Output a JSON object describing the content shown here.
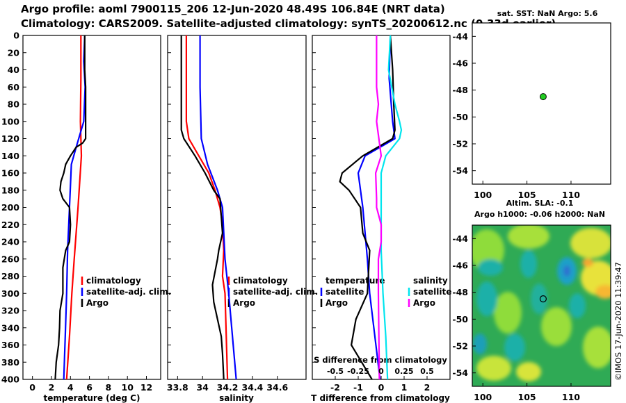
{
  "titles": {
    "line1": "Argo profile: aoml 7900115_206 12-Jun-2020 48.49S 106.84E (NRT data)",
    "line2": "Climatology: CARS2009. Satellite-adjusted climatology: synTS_20200612.nc (0.33d earlier)"
  },
  "depth_ticks": [
    0,
    20,
    40,
    60,
    80,
    100,
    120,
    140,
    160,
    180,
    200,
    220,
    240,
    260,
    280,
    300,
    320,
    340,
    360,
    380,
    400
  ],
  "colors": {
    "argo": "#000000",
    "clim": "#ff0000",
    "sat_adj": "#0000ff",
    "t_sat": "#0000ff",
    "t_argo": "#000000",
    "s_sat": "#00e5ee",
    "s_argo": "#ff00ff",
    "marker": "#22cc22"
  },
  "chart_data": [
    {
      "type": "line",
      "title": "",
      "xlabel": "temperature (deg C)",
      "ylabel": "",
      "xlim": [
        -1,
        13.5
      ],
      "ylim": [
        400,
        0
      ],
      "xticks": [
        0,
        2,
        4,
        6,
        8,
        10,
        12
      ],
      "legend": [
        "climatology",
        "satellite-adj. clim.",
        "Argo"
      ],
      "series": [
        {
          "name": "climatology",
          "y": [
            0,
            50,
            100,
            140,
            200,
            260,
            300,
            350,
            400
          ],
          "x": [
            5.1,
            5.1,
            5.05,
            5.15,
            4.8,
            4.4,
            4.15,
            3.9,
            3.6
          ]
        },
        {
          "name": "satellite-adj. clim.",
          "y": [
            0,
            30,
            60,
            100,
            130,
            150,
            200,
            250,
            300,
            350,
            400
          ],
          "x": [
            5.5,
            5.4,
            5.55,
            5.4,
            4.6,
            4.1,
            3.9,
            3.7,
            3.6,
            3.45,
            3.3
          ]
        },
        {
          "name": "Argo",
          "y": [
            0,
            40,
            60,
            90,
            120,
            125,
            130,
            140,
            150,
            160,
            170,
            180,
            190,
            200,
            220,
            240,
            250,
            270,
            300,
            320,
            340,
            360,
            380,
            400
          ],
          "x": [
            5.5,
            5.5,
            5.6,
            5.6,
            5.6,
            5.3,
            4.6,
            4.0,
            3.5,
            3.3,
            3.0,
            2.9,
            3.2,
            3.9,
            4.0,
            3.9,
            3.5,
            3.2,
            3.2,
            2.9,
            2.85,
            2.75,
            2.5,
            2.4
          ]
        }
      ]
    },
    {
      "type": "line",
      "title": "",
      "xlabel": "salinity",
      "ylabel": "",
      "xlim": [
        33.72,
        34.83
      ],
      "ylim": [
        400,
        0
      ],
      "xticks": [
        33.8,
        34,
        34.2,
        34.4,
        34.6
      ],
      "legend": [
        "climatology",
        "satellite-adj. clim.",
        "Argo"
      ],
      "series": [
        {
          "name": "climatology",
          "y": [
            0,
            100,
            120,
            140,
            160,
            180,
            200,
            220,
            250,
            280,
            300,
            350,
            400
          ],
          "x": [
            33.87,
            33.87,
            33.89,
            33.97,
            34.05,
            34.1,
            34.14,
            34.16,
            34.17,
            34.16,
            34.18,
            34.19,
            34.2
          ],
          "style": "lower-part"
        },
        {
          "name": "satellite-adj. clim.",
          "y": [
            0,
            60,
            120,
            150,
            180,
            200,
            230,
            260,
            300,
            350,
            400
          ],
          "x": [
            33.98,
            33.98,
            33.99,
            34.04,
            34.12,
            34.16,
            34.17,
            34.18,
            34.21,
            34.24,
            34.27
          ]
        },
        {
          "name": "Argo",
          "y": [
            0,
            110,
            120,
            140,
            160,
            180,
            190,
            210,
            230,
            250,
            260,
            290,
            310,
            330,
            350,
            370,
            400
          ],
          "x": [
            33.83,
            33.83,
            33.85,
            33.94,
            34.02,
            34.09,
            34.14,
            34.15,
            34.16,
            34.13,
            34.12,
            34.08,
            34.09,
            34.12,
            34.15,
            34.16,
            34.17
          ]
        }
      ]
    },
    {
      "type": "line",
      "title": "",
      "xlabel": "T difference from climatology",
      "ylabel": "",
      "xlim": [
        -3,
        3
      ],
      "ylim": [
        400,
        0
      ],
      "xticks": [
        -2,
        -1,
        0,
        1,
        2
      ],
      "top_xlabel": "S difference from climatology",
      "top_xticks": [
        -0.5,
        -0.25,
        0,
        0.25,
        0.5
      ],
      "legend_groups": [
        {
          "title": "temperature",
          "items": [
            "satellite",
            "Argo"
          ]
        },
        {
          "title": "salinity",
          "items": [
            "satellite",
            "Argo"
          ]
        }
      ],
      "series": [
        {
          "name": "temperature satellite",
          "y": [
            0,
            50,
            100,
            120,
            140,
            160,
            200,
            260,
            300,
            400
          ],
          "x": [
            0.4,
            0.35,
            0.5,
            0.6,
            -0.7,
            -1.0,
            -0.8,
            -0.6,
            -0.5,
            -0.05
          ]
        },
        {
          "name": "temperature Argo",
          "y": [
            0,
            40,
            80,
            110,
            120,
            140,
            160,
            170,
            180,
            200,
            230,
            250,
            300,
            330,
            360,
            400
          ],
          "x": [
            0.4,
            0.5,
            0.55,
            0.6,
            0.5,
            -0.8,
            -1.7,
            -1.8,
            -1.4,
            -0.9,
            -0.8,
            -0.5,
            -0.6,
            -1.1,
            -1.3,
            -0.4
          ]
        },
        {
          "name": "salinity satellite",
          "y": [
            0,
            40,
            80,
            100,
            110,
            120,
            140,
            160,
            200,
            250,
            300,
            350,
            400
          ],
          "x": [
            0.1,
            0.08,
            0.15,
            0.2,
            0.22,
            0.2,
            0.05,
            0.0,
            0.0,
            0.0,
            0.02,
            0.05,
            0.07
          ]
        },
        {
          "name": "salinity Argo",
          "y": [
            0,
            60,
            80,
            100,
            140,
            160,
            190,
            200,
            220,
            240,
            260,
            300,
            400
          ],
          "x": [
            -0.05,
            -0.05,
            -0.03,
            -0.05,
            0.0,
            -0.06,
            -0.05,
            -0.05,
            0.0,
            0.0,
            -0.03,
            -0.03,
            -0.02
          ]
        }
      ]
    },
    {
      "type": "scatter",
      "title": "sat. SST: NaN Argo: 5.6",
      "xlim": [
        98.8,
        114.5
      ],
      "ylim": [
        -55,
        -43
      ],
      "xticks": [
        100,
        105,
        110
      ],
      "yticks": [
        -44,
        -46,
        -48,
        -50,
        -52,
        -54
      ],
      "points": [
        {
          "x": 106.84,
          "y": -48.49
        }
      ]
    },
    {
      "type": "heatmap",
      "title_line1": "Altim. SLA: -0.1",
      "title_line2": "Argo h1000: -0.06 h2000: NaN",
      "xlim": [
        98.8,
        114.5
      ],
      "ylim": [
        -55,
        -43
      ],
      "xticks": [
        100,
        105,
        110
      ],
      "yticks": [
        -44,
        -46,
        -48,
        -50,
        -52,
        -54
      ],
      "points": [
        {
          "x": 106.84,
          "y": -48.49
        }
      ],
      "side_label": "©IMOS 17-Jun-2020 11:39:47"
    }
  ]
}
